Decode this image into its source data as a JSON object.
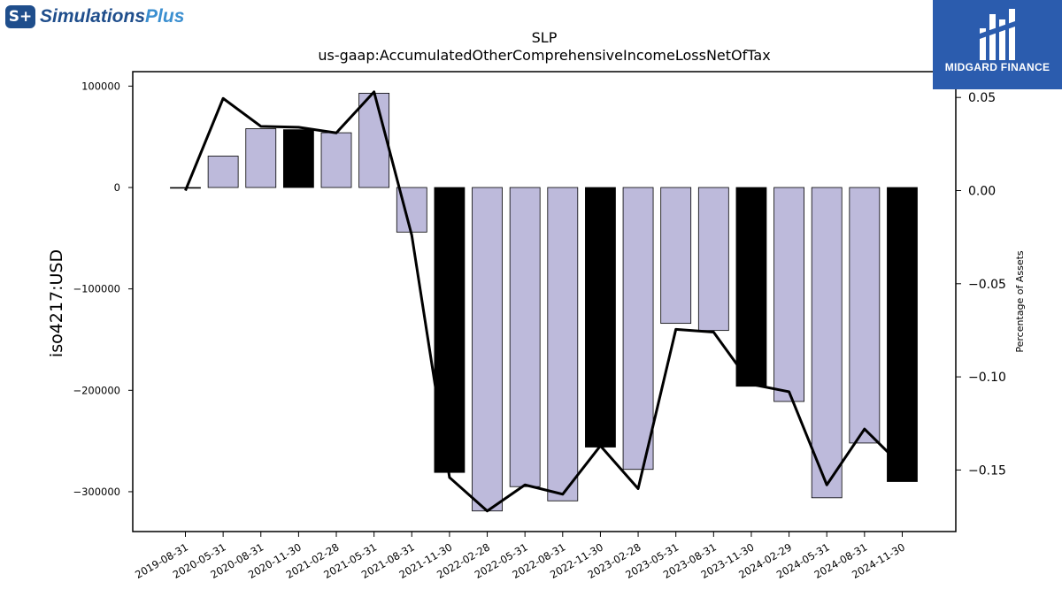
{
  "brand": {
    "mark": "S+",
    "name_part1": "Simulations",
    "name_part2": "Plus",
    "icon": "simulations-plus-logo-icon"
  },
  "watermark": {
    "label": "MIDGARD FINANCE",
    "icon": "midgard-finance-logo-icon",
    "background": "#2b5cae"
  },
  "chart_data": {
    "type": "bar",
    "title": "SLP",
    "subtitle": "us-gaap:AccumulatedOtherComprehensiveIncomeLossNetOfTax",
    "ylabel": "iso4217:USD",
    "y2label": "Percentage of Assets",
    "ylim": [
      -340000,
      115000
    ],
    "y2lim": [
      -0.182,
      0.0545
    ],
    "yticks": [
      100000,
      0,
      -100000,
      -200000,
      -300000
    ],
    "y2ticks": [
      0.05,
      0.0,
      -0.05,
      -0.1,
      -0.15
    ],
    "y2tick_labels": [
      "0.05",
      "0.00",
      "−0.05",
      "−0.10",
      "−0.15"
    ],
    "grid": false,
    "categories": [
      "2019-08-31",
      "2020-05-31",
      "2020-08-31",
      "2020-11-30",
      "2021-02-28",
      "2021-05-31",
      "2021-08-31",
      "2021-11-30",
      "2022-02-28",
      "2022-05-31",
      "2022-08-31",
      "2022-11-30",
      "2023-02-28",
      "2023-05-31",
      "2023-08-31",
      "2023-11-30",
      "2024-02-29",
      "2024-05-31",
      "2024-08-31",
      "2024-11-30"
    ],
    "series": [
      {
        "values": [
          0,
          31000,
          58000,
          57000,
          54000,
          93000,
          -44000,
          -281000,
          -319000,
          -295000,
          -309000,
          -256000,
          -278000,
          -134000,
          -141000,
          -196000,
          -211000,
          -306000,
          -252000,
          -290000
        ],
        "kind": "bar",
        "colors": [
          "#bdbadb",
          "#bdbadb",
          "#bdbadb",
          "#000000",
          "#bdbadb",
          "#bdbadb",
          "#bdbadb",
          "#000000",
          "#bdbadb",
          "#bdbadb",
          "#bdbadb",
          "#000000",
          "#bdbadb",
          "#bdbadb",
          "#bdbadb",
          "#000000",
          "#bdbadb",
          "#bdbadb",
          "#bdbadb",
          "#000000"
        ]
      },
      {
        "values": [
          0.0,
          0.0495,
          0.0345,
          0.034,
          0.031,
          0.053,
          -0.024,
          -0.154,
          -0.172,
          -0.158,
          -0.163,
          -0.137,
          -0.16,
          -0.0745,
          -0.076,
          -0.104,
          -0.108,
          -0.158,
          -0.128,
          -0.148
        ],
        "kind": "line",
        "axis": "right",
        "color": "#000000"
      }
    ]
  }
}
